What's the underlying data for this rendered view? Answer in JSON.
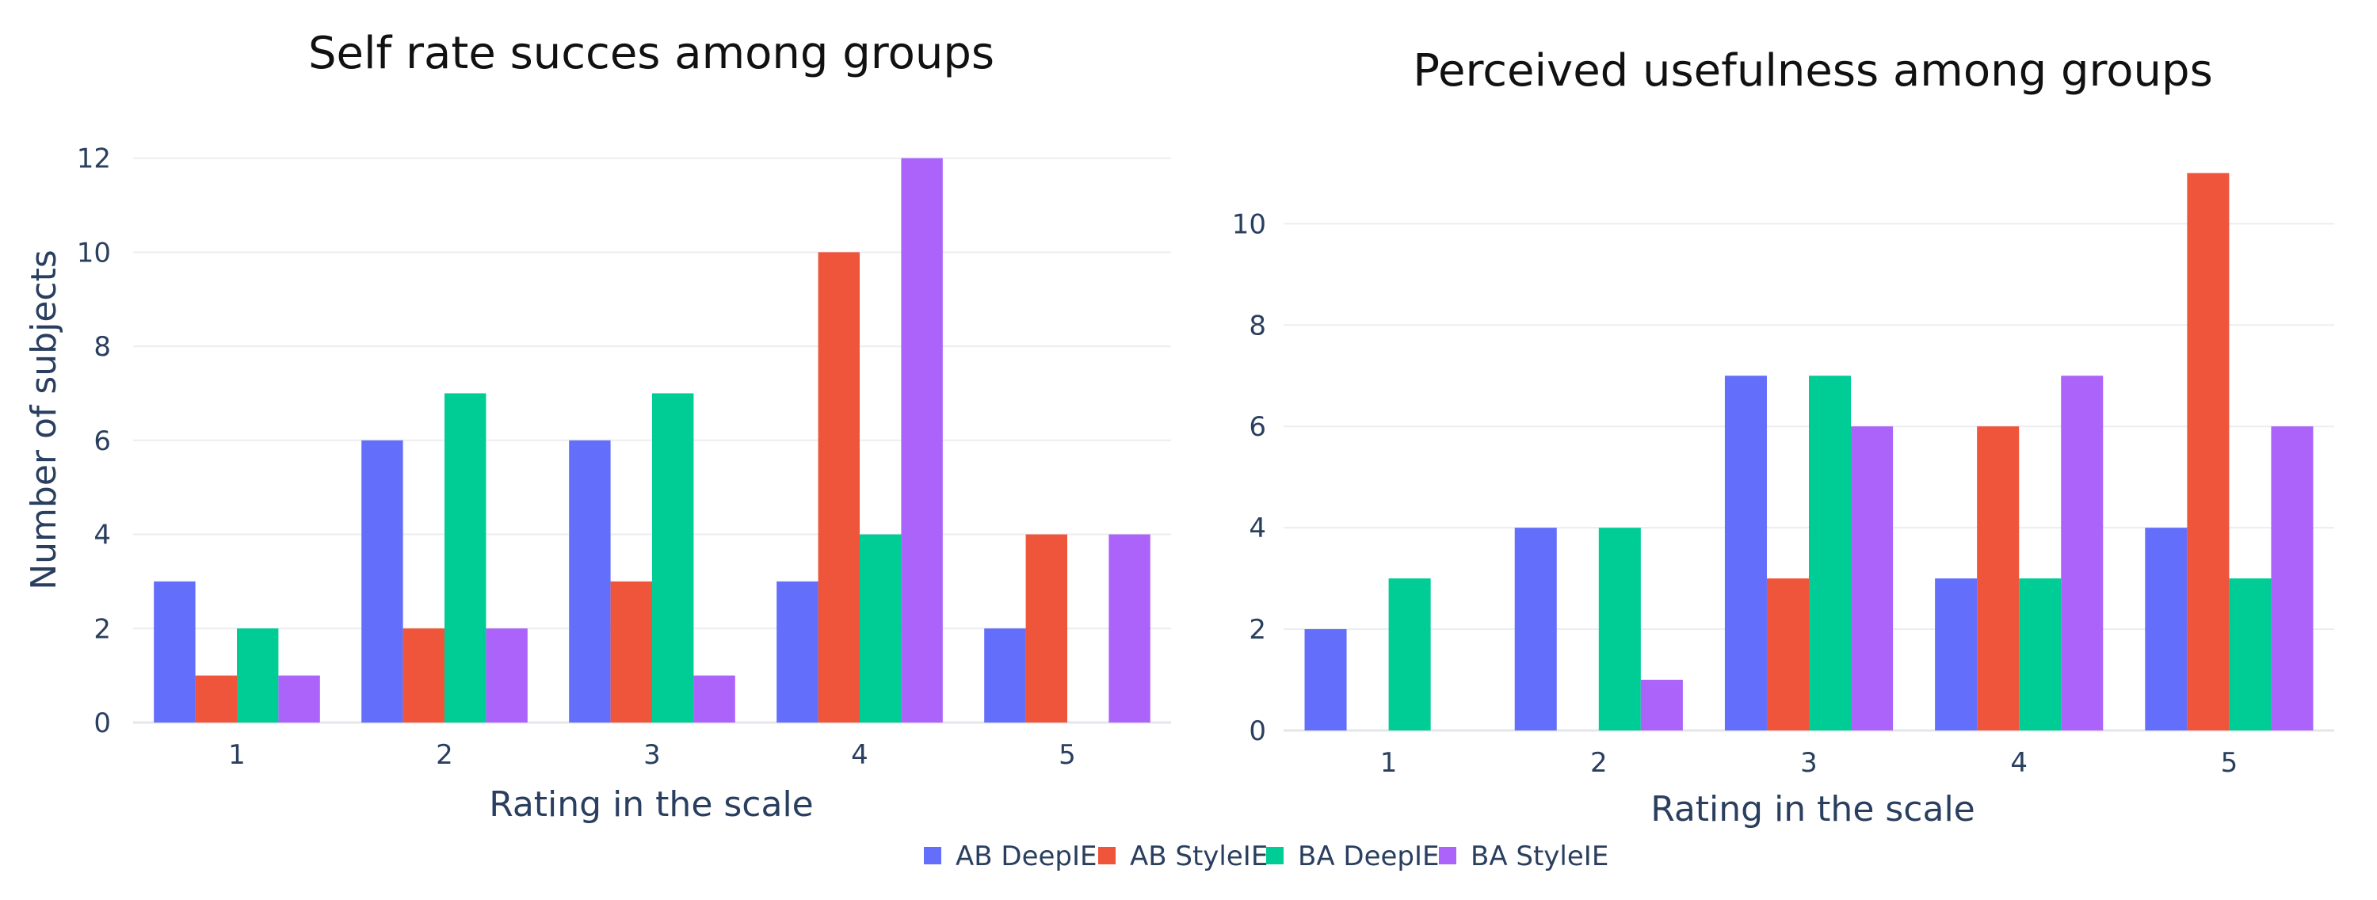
{
  "colors": {
    "AB DeepIE": "#636efa",
    "AB StyleIE": "#ef553b",
    "BA DeepIE": "#00cc96",
    "BA StyleIE": "#ab63fa"
  },
  "legend": {
    "items": [
      "AB DeepIE",
      "AB StyleIE",
      "BA DeepIE",
      "BA StyleIE"
    ],
    "placement": "bottom-center"
  },
  "chart_data": [
    {
      "type": "bar",
      "title": "Self rate succes among groups",
      "xlabel": "Rating in the scale",
      "ylabel": "Number of subjects",
      "categories": [
        "1",
        "2",
        "3",
        "4",
        "5"
      ],
      "ylim": [
        0,
        12.6
      ],
      "yticks": [
        0,
        2,
        4,
        6,
        8,
        10,
        12
      ],
      "grid": true,
      "series": [
        {
          "name": "AB DeepIE",
          "values": [
            3,
            6,
            6,
            3,
            2
          ]
        },
        {
          "name": "AB StyleIE",
          "values": [
            1,
            2,
            3,
            10,
            4
          ]
        },
        {
          "name": "BA DeepIE",
          "values": [
            2,
            7,
            7,
            4,
            0
          ]
        },
        {
          "name": "BA StyleIE",
          "values": [
            1,
            2,
            1,
            12,
            4
          ]
        }
      ]
    },
    {
      "type": "bar",
      "title": "Perceived usefulness among groups",
      "xlabel": "Rating in the scale",
      "ylabel": "",
      "categories": [
        "1",
        "2",
        "3",
        "4",
        "5"
      ],
      "ylim": [
        0,
        11.6
      ],
      "yticks": [
        0,
        2,
        4,
        6,
        8,
        10
      ],
      "grid": true,
      "series": [
        {
          "name": "AB DeepIE",
          "values": [
            2,
            4,
            7,
            3,
            4
          ]
        },
        {
          "name": "AB StyleIE",
          "values": [
            0,
            0,
            3,
            6,
            11
          ]
        },
        {
          "name": "BA DeepIE",
          "values": [
            3,
            4,
            7,
            3,
            3
          ]
        },
        {
          "name": "BA StyleIE",
          "values": [
            0,
            1,
            6,
            7,
            6
          ]
        }
      ]
    }
  ]
}
